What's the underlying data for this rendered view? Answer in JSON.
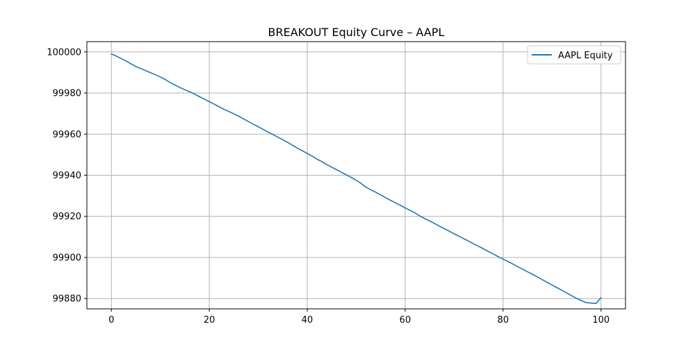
{
  "chart_data": {
    "type": "line",
    "title": "BREAKOUT Equity Curve – AAPL",
    "xlabel": "",
    "ylabel": "",
    "xlim": [
      -5,
      105
    ],
    "ylim": [
      99875,
      100005
    ],
    "x_ticks": [
      0,
      20,
      40,
      60,
      80,
      100
    ],
    "y_ticks": [
      99880,
      99900,
      99920,
      99940,
      99960,
      99980,
      100000
    ],
    "grid": true,
    "legend_position": "top-right",
    "series": [
      {
        "name": "AAPL Equity",
        "color": "#1f77b4",
        "x": [
          0,
          1,
          2,
          3,
          4,
          5,
          6,
          7,
          8,
          9,
          10,
          11,
          12,
          13,
          14,
          15,
          16,
          17,
          18,
          19,
          20,
          21,
          22,
          23,
          24,
          25,
          26,
          27,
          28,
          29,
          30,
          31,
          32,
          33,
          34,
          35,
          36,
          37,
          38,
          39,
          40,
          41,
          42,
          43,
          44,
          45,
          46,
          47,
          48,
          49,
          50,
          51,
          52,
          53,
          54,
          55,
          56,
          57,
          58,
          59,
          60,
          61,
          62,
          63,
          64,
          65,
          66,
          67,
          68,
          69,
          70,
          71,
          72,
          73,
          74,
          75,
          76,
          77,
          78,
          79,
          80,
          81,
          82,
          83,
          84,
          85,
          86,
          87,
          88,
          89,
          90,
          91,
          92,
          93,
          94,
          95,
          96,
          97,
          98,
          99,
          100
        ],
        "y": [
          99999.0,
          99998.0,
          99996.8,
          99995.6,
          99994.2,
          99992.9,
          99991.9,
          99990.9,
          99989.9,
          99988.9,
          99987.8,
          99986.6,
          99985.1,
          99983.9,
          99982.7,
          99981.6,
          99980.6,
          99979.5,
          99978.2,
          99977.0,
          99975.8,
          99974.6,
          99973.3,
          99972.1,
          99971.0,
          99969.9,
          99968.7,
          99967.4,
          99966.1,
          99964.8,
          99963.6,
          99962.3,
          99961.0,
          99959.8,
          99958.5,
          99957.3,
          99956.0,
          99954.6,
          99953.2,
          99951.9,
          99950.6,
          99949.3,
          99947.8,
          99946.6,
          99945.2,
          99943.9,
          99942.7,
          99941.4,
          99940.2,
          99938.9,
          99937.6,
          99936.0,
          99934.2,
          99932.9,
          99931.7,
          99930.4,
          99929.1,
          99927.8,
          99926.6,
          99925.4,
          99924.1,
          99922.9,
          99921.7,
          99920.2,
          99918.9,
          99917.8,
          99916.5,
          99915.2,
          99914.0,
          99912.8,
          99911.5,
          99910.3,
          99909.1,
          99907.9,
          99906.6,
          99905.4,
          99904.2,
          99902.9,
          99901.7,
          99900.4,
          99899.2,
          99898.0,
          99896.8,
          99895.5,
          99894.3,
          99893.0,
          99891.8,
          99890.5,
          99889.2,
          99887.9,
          99886.6,
          99885.3,
          99884.0,
          99882.7,
          99881.4,
          99880.1,
          99879.0,
          99878.0,
          99877.8,
          99877.6,
          99880.5
        ]
      }
    ]
  }
}
